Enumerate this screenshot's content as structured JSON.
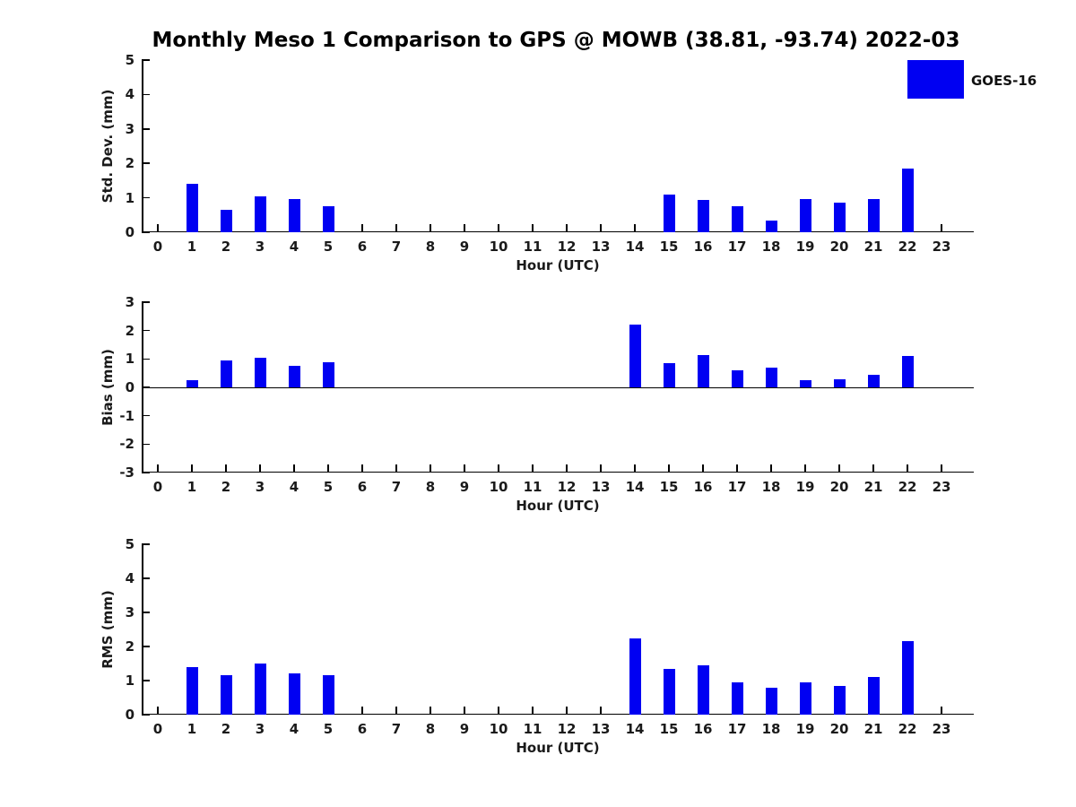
{
  "figure": {
    "title": "Monthly Meso 1 Comparison to GPS @ MOWB (38.81, -93.74) 2022-03",
    "background": "#ffffff",
    "text_color": "#1a1a1a",
    "legend": {
      "label": "GOES-16",
      "color": "#0000f2",
      "position": "upper right"
    }
  },
  "chart_data": [
    {
      "type": "bar",
      "name": "std-dev",
      "ylabel": "Std. Dev. (mm)",
      "xlabel": "Hour (UTC)",
      "categories": [
        0,
        1,
        2,
        3,
        4,
        5,
        6,
        7,
        8,
        9,
        10,
        11,
        12,
        13,
        14,
        15,
        16,
        17,
        18,
        19,
        20,
        21,
        22,
        23
      ],
      "series": [
        {
          "name": "GOES-16",
          "color": "#0000f2",
          "values": [
            null,
            1.4,
            0.65,
            1.05,
            0.97,
            0.75,
            null,
            null,
            null,
            null,
            null,
            null,
            null,
            null,
            null,
            1.1,
            0.95,
            0.75,
            0.35,
            0.97,
            0.85,
            0.97,
            1.85,
            null
          ]
        }
      ],
      "ylim": [
        0,
        5
      ],
      "yticks": [
        0,
        1,
        2,
        3,
        4,
        5
      ],
      "grid": false,
      "zero_line": false
    },
    {
      "type": "bar",
      "name": "bias",
      "ylabel": "Bias (mm)",
      "xlabel": "Hour (UTC)",
      "categories": [
        0,
        1,
        2,
        3,
        4,
        5,
        6,
        7,
        8,
        9,
        10,
        11,
        12,
        13,
        14,
        15,
        16,
        17,
        18,
        19,
        20,
        21,
        22,
        23
      ],
      "series": [
        {
          "name": "GOES-16",
          "color": "#0000f2",
          "values": [
            null,
            0.25,
            0.95,
            1.05,
            0.75,
            0.9,
            null,
            null,
            null,
            null,
            null,
            null,
            null,
            null,
            2.2,
            0.85,
            1.15,
            0.6,
            0.7,
            0.25,
            0.3,
            0.45,
            1.1,
            null
          ]
        }
      ],
      "ylim": [
        -3,
        3
      ],
      "yticks": [
        -3,
        -2,
        -1,
        0,
        1,
        2,
        3
      ],
      "grid": false,
      "zero_line": true
    },
    {
      "type": "bar",
      "name": "rms",
      "ylabel": "RMS (mm)",
      "xlabel": "Hour (UTC)",
      "categories": [
        0,
        1,
        2,
        3,
        4,
        5,
        6,
        7,
        8,
        9,
        10,
        11,
        12,
        13,
        14,
        15,
        16,
        17,
        18,
        19,
        20,
        21,
        22,
        23
      ],
      "series": [
        {
          "name": "GOES-16",
          "color": "#0000f2",
          "values": [
            null,
            1.4,
            1.15,
            1.5,
            1.2,
            1.15,
            null,
            null,
            null,
            null,
            null,
            null,
            null,
            null,
            2.25,
            1.35,
            1.45,
            0.95,
            0.8,
            0.95,
            0.85,
            1.1,
            2.15,
            null
          ]
        }
      ],
      "ylim": [
        0,
        5
      ],
      "yticks": [
        0,
        1,
        2,
        3,
        4,
        5
      ],
      "grid": false,
      "zero_line": false
    }
  ]
}
